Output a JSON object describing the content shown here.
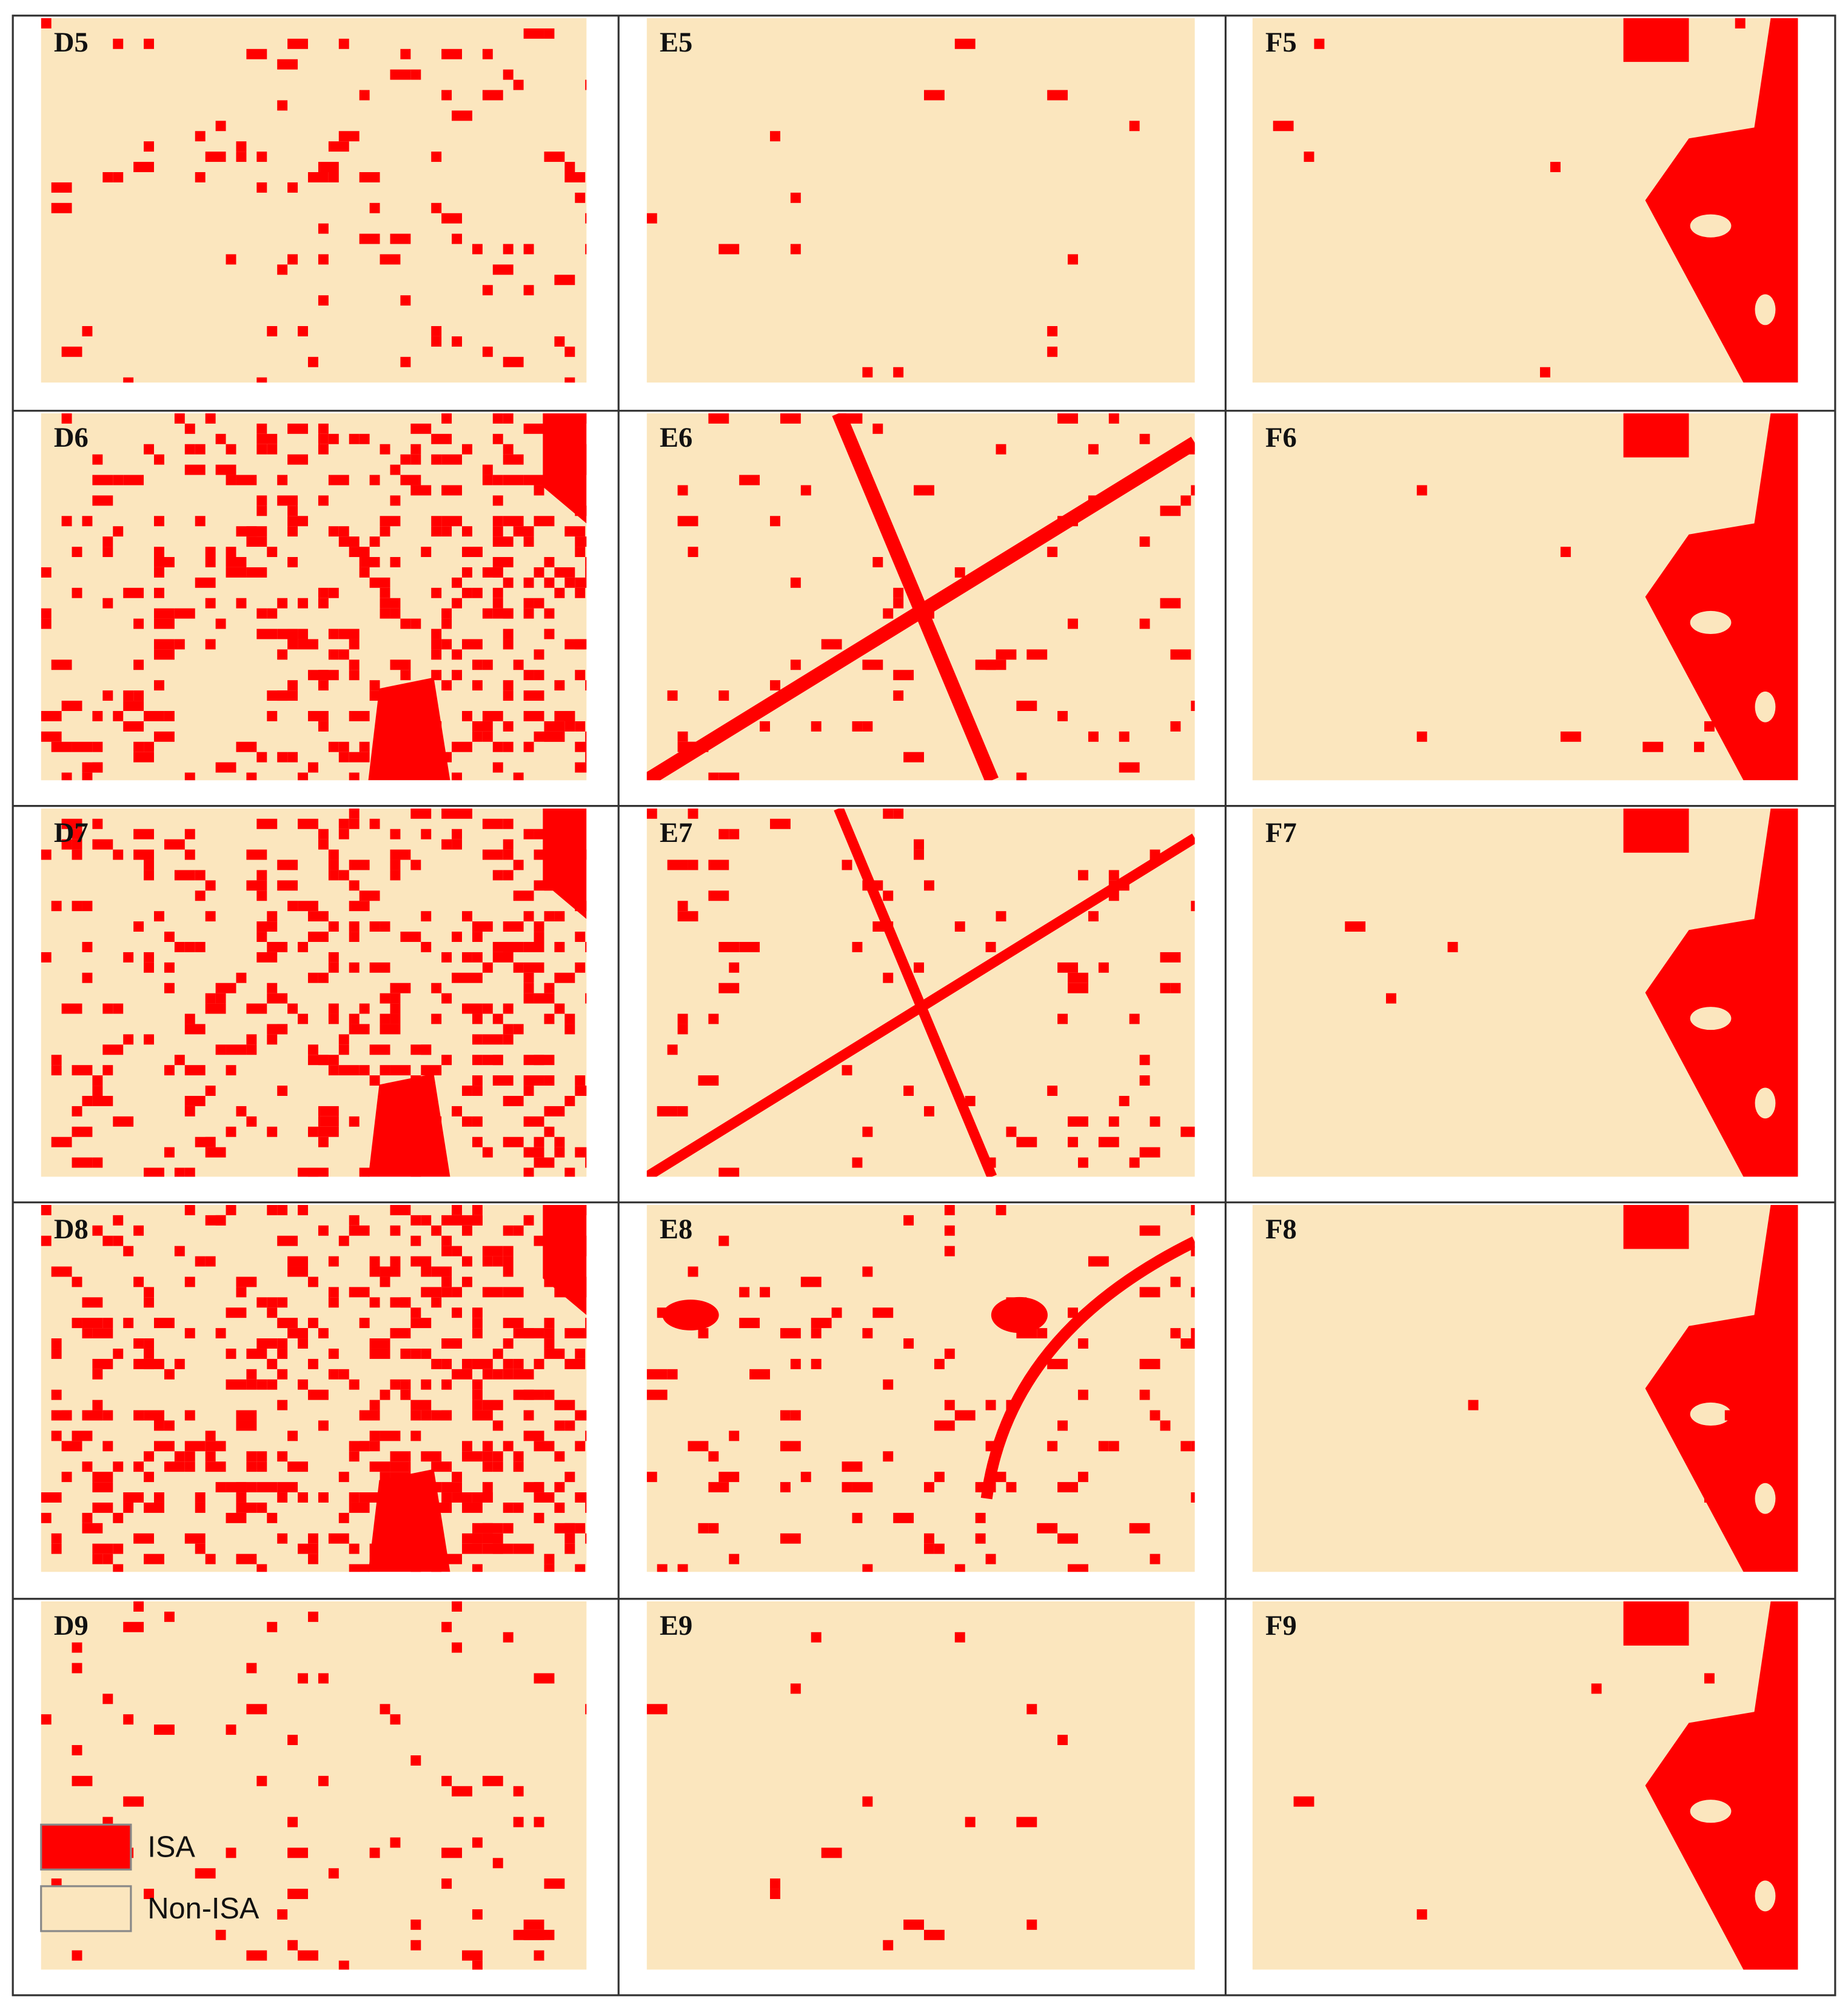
{
  "rows": [
    [
      "D5",
      "E5",
      "F5"
    ],
    [
      "D6",
      "E6",
      "F6"
    ],
    [
      "D7",
      "E7",
      "F7"
    ],
    [
      "D8",
      "E8",
      "F8"
    ],
    [
      "D9",
      "E9",
      "F9"
    ]
  ],
  "legend": {
    "items": [
      "ISA",
      "Non-ISA"
    ]
  }
}
